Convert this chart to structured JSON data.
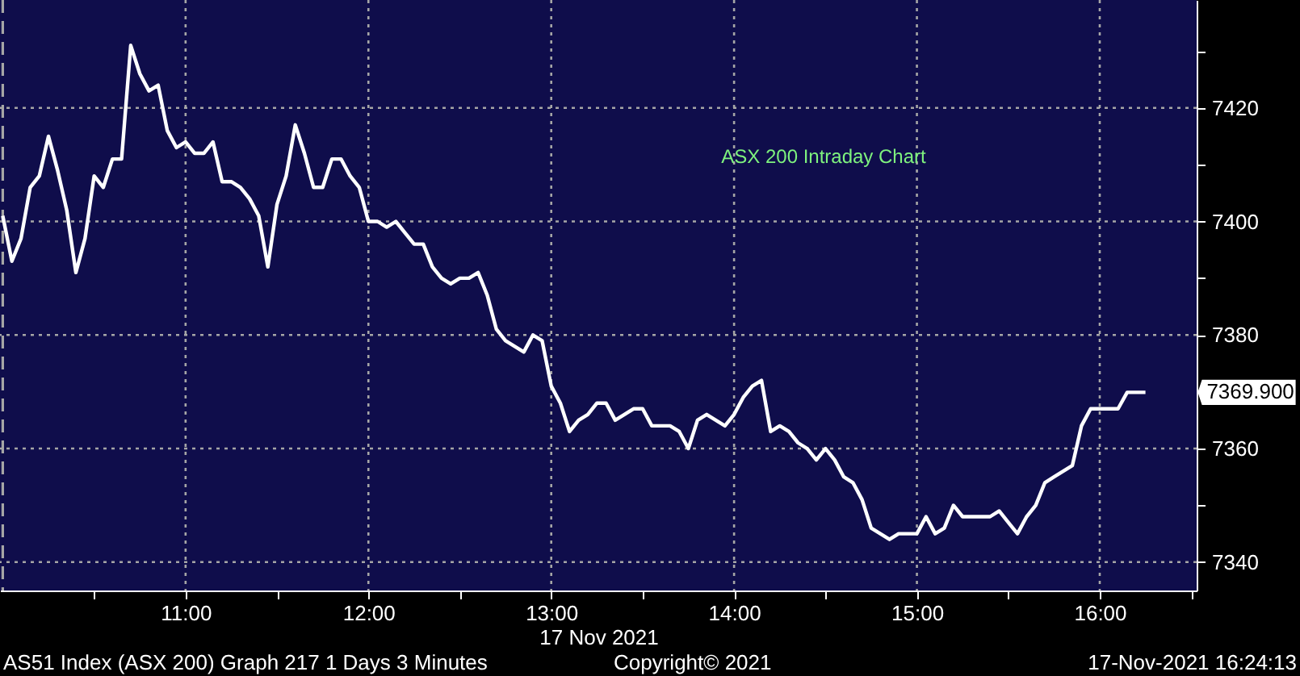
{
  "chart_data": {
    "type": "line",
    "title": "ASX 200 Intraday Chart",
    "xlabel": "17 Nov 2021",
    "x": [
      10,
      10.05,
      10.1,
      10.15,
      10.2,
      10.25,
      10.3,
      10.35,
      10.4,
      10.45,
      10.5,
      10.55,
      10.6,
      10.65,
      10.7,
      10.75,
      10.8,
      10.85,
      10.9,
      10.95,
      11,
      11.05,
      11.1,
      11.15,
      11.2,
      11.25,
      11.3,
      11.35,
      11.4,
      11.45,
      11.5,
      11.55,
      11.6,
      11.65,
      11.7,
      11.75,
      11.8,
      11.85,
      11.9,
      11.95,
      12,
      12.05,
      12.1,
      12.15,
      12.2,
      12.25,
      12.3,
      12.35,
      12.4,
      12.45,
      12.5,
      12.55,
      12.6,
      12.65,
      12.7,
      12.75,
      12.8,
      12.85,
      12.9,
      12.95,
      13,
      13.05,
      13.1,
      13.15,
      13.2,
      13.25,
      13.3,
      13.35,
      13.4,
      13.45,
      13.5,
      13.55,
      13.6,
      13.65,
      13.7,
      13.75,
      13.8,
      13.85,
      13.9,
      13.95,
      14,
      14.05,
      14.1,
      14.15,
      14.2,
      14.25,
      14.3,
      14.35,
      14.4,
      14.45,
      14.5,
      14.55,
      14.6,
      14.65,
      14.7,
      14.75,
      14.8,
      14.85,
      14.9,
      14.95,
      15,
      15.05,
      15.1,
      15.15,
      15.2,
      15.25,
      15.3,
      15.35,
      15.4,
      15.45,
      15.5,
      15.55,
      15.6,
      15.65,
      15.7,
      15.75,
      15.8,
      15.85,
      15.9,
      15.95,
      16,
      16.05,
      16.1,
      16.15,
      16.2,
      16.25
    ],
    "series": [
      {
        "color": "#ffffff",
        "values": [
          7401,
          7393,
          7397,
          7406,
          7408,
          7415,
          7409,
          7402,
          7391,
          7397,
          7408,
          7406,
          7411,
          7411,
          7431,
          7426,
          7423,
          7424,
          7416,
          7413,
          7414,
          7412,
          7412,
          7414,
          7407,
          7407,
          7406,
          7404,
          7401,
          7392,
          7403,
          7408,
          7417,
          7412,
          7406,
          7406,
          7411,
          7411,
          7408,
          7406,
          7400,
          7400,
          7399,
          7400,
          7398,
          7396,
          7396,
          7392,
          7390,
          7389,
          7390,
          7390,
          7391,
          7387,
          7381,
          7379,
          7378,
          7377,
          7380,
          7379,
          7371,
          7368,
          7363,
          7365,
          7366,
          7368,
          7368,
          7365,
          7366,
          7367,
          7367,
          7364,
          7364,
          7364,
          7363,
          7360,
          7365,
          7366,
          7365,
          7364,
          7366,
          7369,
          7371,
          7372,
          7363,
          7364,
          7363,
          7361,
          7360,
          7358,
          7360,
          7358,
          7355,
          7354,
          7351,
          7346,
          7345,
          7344,
          7345,
          7345,
          7345,
          7348,
          7345,
          7346,
          7350,
          7348,
          7348,
          7348,
          7348,
          7349,
          7347,
          7345,
          7348,
          7350,
          7354,
          7355,
          7356,
          7357,
          7364,
          7367,
          7367,
          7367,
          7367,
          7369.9,
          7369.9,
          7369.9
        ]
      }
    ],
    "xlim": [
      9.985,
      16.53
    ],
    "ylim": [
      7335,
      7439
    ],
    "xticks": [
      {
        "value": 10.5,
        "label": null
      },
      {
        "value": 11,
        "label": "11:00"
      },
      {
        "value": 11.5,
        "label": null
      },
      {
        "value": 12,
        "label": "12:00"
      },
      {
        "value": 12.5,
        "label": null
      },
      {
        "value": 13,
        "label": "13:00"
      },
      {
        "value": 13.5,
        "label": null
      },
      {
        "value": 14,
        "label": "14:00"
      },
      {
        "value": 14.5,
        "label": null
      },
      {
        "value": 15,
        "label": "15:00"
      },
      {
        "value": 15.5,
        "label": null
      },
      {
        "value": 16,
        "label": "16:00"
      },
      {
        "value": 16.5,
        "label": null
      }
    ],
    "yticks": [
      7340,
      {
        "value": 7350,
        "label": null
      },
      7360,
      {
        "value": 7370,
        "label": null
      },
      7380,
      {
        "value": 7390,
        "label": null
      },
      7400,
      {
        "value": 7410,
        "label": null
      },
      7420,
      {
        "value": 7430,
        "label": null
      }
    ],
    "grid": true,
    "line_style": "solid",
    "ref_lines": [
      {
        "axis": "x",
        "value": 10,
        "line_style": "dashed",
        "color": "#a6a6a6"
      }
    ],
    "annotations": [
      {
        "text": "7369.900",
        "x": 16.25,
        "y": 7369.9
      },
      "AS51 Index (ASX 200) Graph 217 1 Days 3 Minutes",
      "Copyright© 2021",
      "17-Nov-2021 16:24:13"
    ]
  }
}
